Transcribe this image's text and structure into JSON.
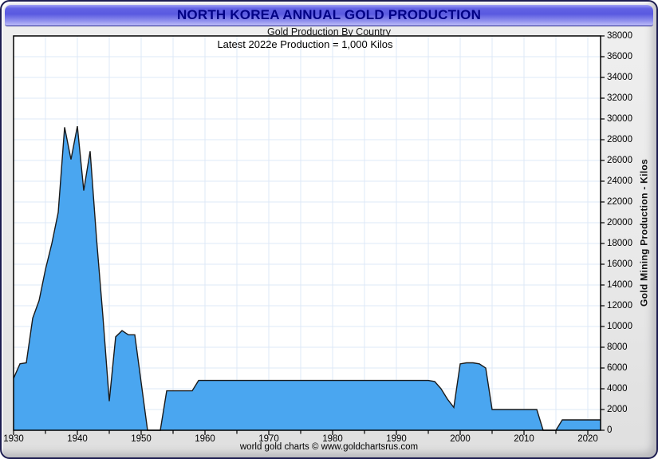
{
  "window": {
    "title": "NORTH KOREA ANNUAL GOLD PRODUCTION",
    "footer": "world gold charts © www.goldchartsrus.com"
  },
  "chart_data": {
    "type": "area",
    "title": "Gold Production By Country",
    "annotation": "Latest 2022e Production = 1,000 Kilos",
    "ylabel": "Gold Mining Production - Kilos",
    "xlabel": "",
    "xlim": [
      1930,
      2022
    ],
    "ylim": [
      0,
      38000
    ],
    "x_ticks": [
      1930,
      1940,
      1950,
      1960,
      1970,
      1980,
      1990,
      2000,
      2010,
      2020
    ],
    "x_minor_tick_step": 5,
    "y_ticks": [
      0,
      2000,
      4000,
      6000,
      8000,
      10000,
      12000,
      14000,
      16000,
      18000,
      20000,
      22000,
      24000,
      26000,
      28000,
      30000,
      32000,
      34000,
      36000,
      38000
    ],
    "grid": true,
    "grid_x_step": 5,
    "grid_y_step": 2000,
    "legend_position": "none",
    "colors": {
      "area_fill": "#4aa6f0",
      "area_line": "#1a1a1a",
      "grid": "#dde8f7",
      "titlebar_accent": "#5a5ae0",
      "title_text": "#000085",
      "plot_bg": "#ffffff"
    },
    "series": [
      {
        "name": "North Korea annual gold production (kilos)",
        "points": [
          [
            1930,
            5000
          ],
          [
            1931,
            6400
          ],
          [
            1932,
            6500
          ],
          [
            1933,
            10800
          ],
          [
            1934,
            12500
          ],
          [
            1935,
            15500
          ],
          [
            1936,
            18000
          ],
          [
            1937,
            21000
          ],
          [
            1938,
            29200
          ],
          [
            1939,
            26100
          ],
          [
            1940,
            29300
          ],
          [
            1941,
            23100
          ],
          [
            1942,
            26900
          ],
          [
            1943,
            18500
          ],
          [
            1944,
            11000
          ],
          [
            1945,
            2800
          ],
          [
            1946,
            9000
          ],
          [
            1947,
            9600
          ],
          [
            1948,
            9200
          ],
          [
            1949,
            9200
          ],
          [
            1950,
            4600
          ],
          [
            1951,
            0
          ],
          [
            1952,
            0
          ],
          [
            1953,
            0
          ],
          [
            1954,
            3800
          ],
          [
            1955,
            3800
          ],
          [
            1956,
            3800
          ],
          [
            1957,
            3800
          ],
          [
            1958,
            3800
          ],
          [
            1959,
            4800
          ],
          [
            1960,
            4800
          ],
          [
            1961,
            4800
          ],
          [
            1962,
            4800
          ],
          [
            1963,
            4800
          ],
          [
            1964,
            4800
          ],
          [
            1965,
            4800
          ],
          [
            1966,
            4800
          ],
          [
            1967,
            4800
          ],
          [
            1968,
            4800
          ],
          [
            1969,
            4800
          ],
          [
            1970,
            4800
          ],
          [
            1971,
            4800
          ],
          [
            1972,
            4800
          ],
          [
            1973,
            4800
          ],
          [
            1974,
            4800
          ],
          [
            1975,
            4800
          ],
          [
            1976,
            4800
          ],
          [
            1977,
            4800
          ],
          [
            1978,
            4800
          ],
          [
            1979,
            4800
          ],
          [
            1980,
            4800
          ],
          [
            1981,
            4800
          ],
          [
            1982,
            4800
          ],
          [
            1983,
            4800
          ],
          [
            1984,
            4800
          ],
          [
            1985,
            4800
          ],
          [
            1986,
            4800
          ],
          [
            1987,
            4800
          ],
          [
            1988,
            4800
          ],
          [
            1989,
            4800
          ],
          [
            1990,
            4800
          ],
          [
            1991,
            4800
          ],
          [
            1992,
            4800
          ],
          [
            1993,
            4800
          ],
          [
            1994,
            4800
          ],
          [
            1995,
            4800
          ],
          [
            1996,
            4700
          ],
          [
            1997,
            4000
          ],
          [
            1998,
            3000
          ],
          [
            1999,
            2200
          ],
          [
            2000,
            6400
          ],
          [
            2001,
            6500
          ],
          [
            2002,
            6500
          ],
          [
            2003,
            6400
          ],
          [
            2004,
            6000
          ],
          [
            2005,
            2000
          ],
          [
            2006,
            2000
          ],
          [
            2007,
            2000
          ],
          [
            2008,
            2000
          ],
          [
            2009,
            2000
          ],
          [
            2010,
            2000
          ],
          [
            2011,
            2000
          ],
          [
            2012,
            2000
          ],
          [
            2013,
            0
          ],
          [
            2014,
            0
          ],
          [
            2015,
            0
          ],
          [
            2016,
            1000
          ],
          [
            2017,
            1000
          ],
          [
            2018,
            1000
          ],
          [
            2019,
            1000
          ],
          [
            2020,
            1000
          ],
          [
            2021,
            1000
          ],
          [
            2022,
            1000
          ]
        ]
      }
    ]
  }
}
